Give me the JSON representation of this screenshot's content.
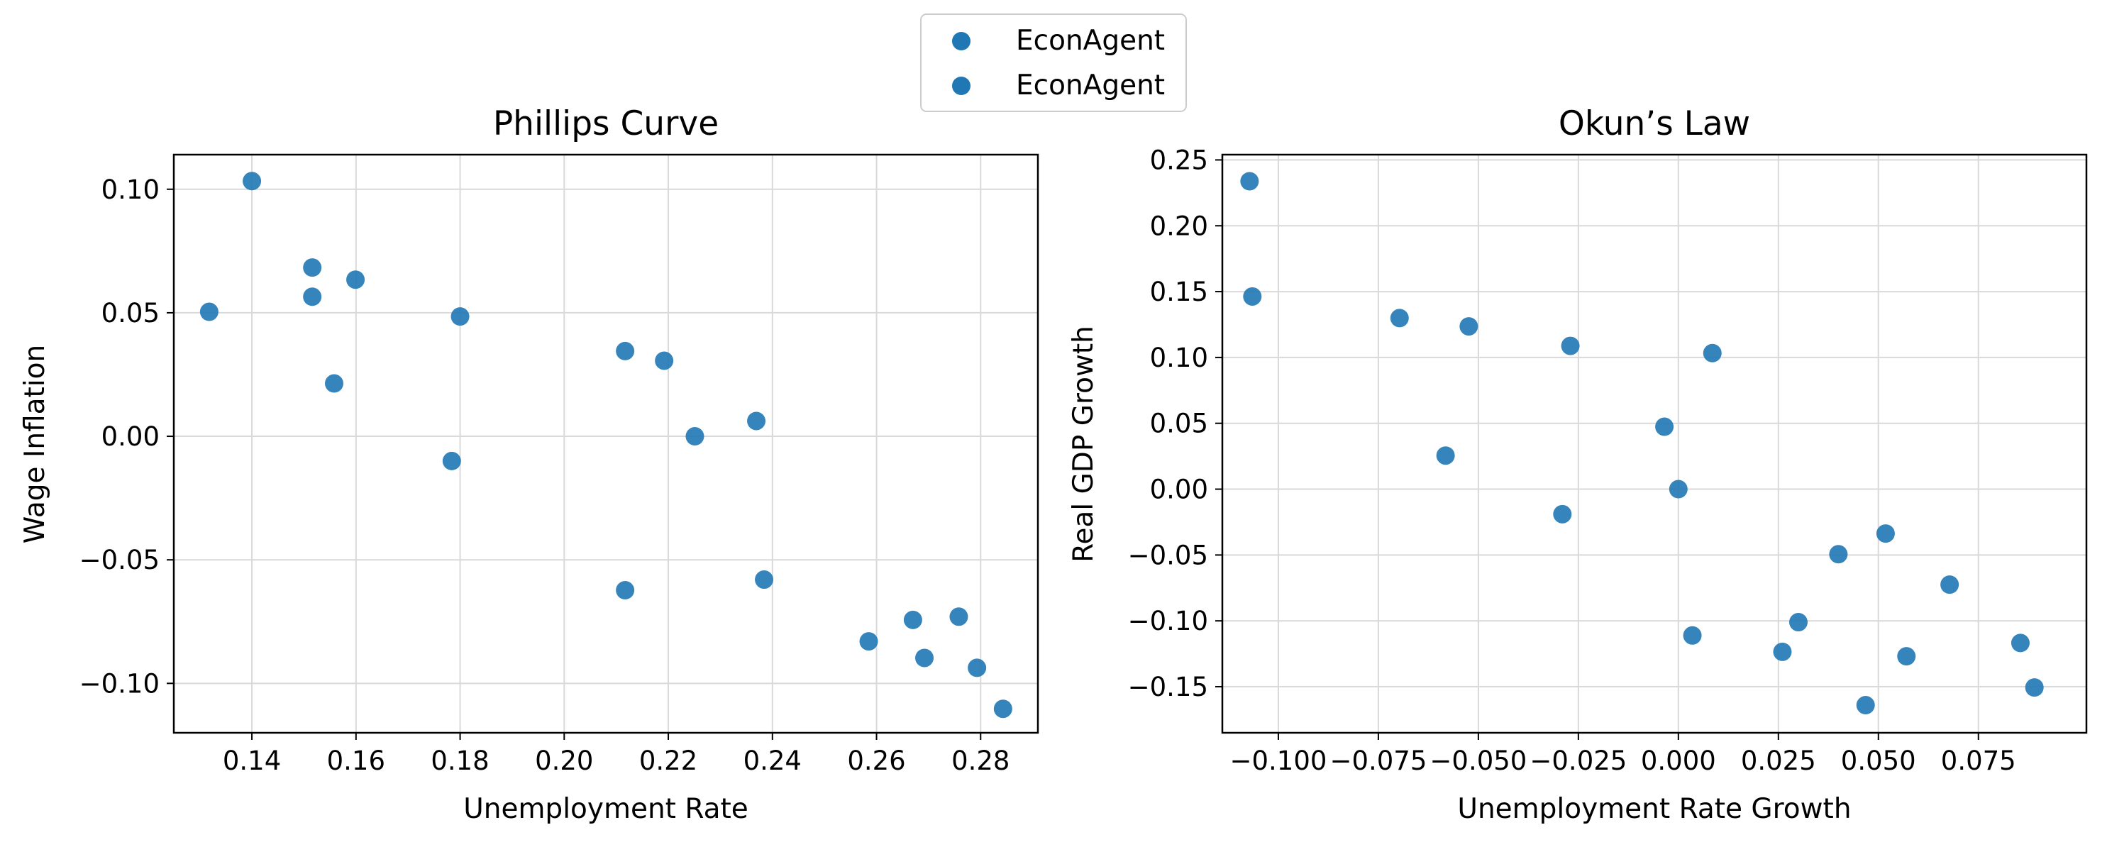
{
  "colors": {
    "marker": "#1f77b4",
    "grid": "#d9d9d9",
    "axes": "#000000"
  },
  "legend": {
    "placement": "top-center",
    "entries": [
      {
        "label": "EconAgent"
      },
      {
        "label": "EconAgent"
      }
    ]
  },
  "chart_data": [
    {
      "type": "scatter",
      "title": "Phillips Curve",
      "xlabel": "Unemployment Rate",
      "ylabel": "Wage Inflation",
      "xlim": [
        0.125,
        0.291
      ],
      "ylim": [
        -0.12,
        0.114
      ],
      "xticks": [
        {
          "value": 0.14,
          "label": "0.14"
        },
        {
          "value": 0.16,
          "label": "0.16"
        },
        {
          "value": 0.18,
          "label": "0.18"
        },
        {
          "value": 0.2,
          "label": "0.20"
        },
        {
          "value": 0.22,
          "label": "0.22"
        },
        {
          "value": 0.24,
          "label": "0.24"
        },
        {
          "value": 0.26,
          "label": "0.26"
        },
        {
          "value": 0.28,
          "label": "0.28"
        }
      ],
      "yticks": [
        {
          "value": 0.1,
          "label": "0.10"
        },
        {
          "value": 0.05,
          "label": "0.05"
        },
        {
          "value": 0.0,
          "label": "0.00"
        },
        {
          "value": -0.05,
          "label": "−0.05"
        },
        {
          "value": -0.1,
          "label": "−0.10"
        }
      ],
      "grid": true,
      "series": [
        {
          "name": "EconAgent",
          "points": [
            {
              "x": 0.1318,
              "y": 0.0504
            },
            {
              "x": 0.14,
              "y": 0.1033
            },
            {
              "x": 0.1516,
              "y": 0.0683
            },
            {
              "x": 0.1516,
              "y": 0.0565
            },
            {
              "x": 0.1558,
              "y": 0.0214
            },
            {
              "x": 0.1599,
              "y": 0.0634
            },
            {
              "x": 0.1784,
              "y": -0.01
            },
            {
              "x": 0.18,
              "y": 0.0485
            },
            {
              "x": 0.2117,
              "y": 0.0345
            },
            {
              "x": 0.2117,
              "y": -0.0623
            },
            {
              "x": 0.2192,
              "y": 0.0306
            },
            {
              "x": 0.2251,
              "y": 0.0
            },
            {
              "x": 0.2369,
              "y": 0.0062
            },
            {
              "x": 0.2384,
              "y": -0.058
            },
            {
              "x": 0.2585,
              "y": -0.083
            },
            {
              "x": 0.267,
              "y": -0.0743
            },
            {
              "x": 0.2692,
              "y": -0.0897
            },
            {
              "x": 0.2758,
              "y": -0.073
            },
            {
              "x": 0.2793,
              "y": -0.0937
            },
            {
              "x": 0.2843,
              "y": -0.1103
            }
          ]
        }
      ]
    },
    {
      "type": "scatter",
      "title": "Okun’s Law",
      "xlabel": "Unemployment Rate Growth",
      "ylabel": "Real GDP Growth",
      "xlim": [
        -0.114,
        0.102
      ],
      "ylim": [
        -0.185,
        0.254
      ],
      "xticks": [
        {
          "value": -0.1,
          "label": "−0.100"
        },
        {
          "value": -0.075,
          "label": "−0.075"
        },
        {
          "value": -0.05,
          "label": "−0.050"
        },
        {
          "value": -0.025,
          "label": "−0.025"
        },
        {
          "value": 0.0,
          "label": "0.000"
        },
        {
          "value": 0.025,
          "label": "0.025"
        },
        {
          "value": 0.05,
          "label": "0.050"
        },
        {
          "value": 0.075,
          "label": "0.075"
        }
      ],
      "yticks": [
        {
          "value": 0.25,
          "label": "0.25"
        },
        {
          "value": 0.2,
          "label": "0.20"
        },
        {
          "value": 0.15,
          "label": "0.15"
        },
        {
          "value": 0.1,
          "label": "0.10"
        },
        {
          "value": 0.05,
          "label": "0.05"
        },
        {
          "value": 0.0,
          "label": "0.00"
        },
        {
          "value": -0.05,
          "label": "−0.05"
        },
        {
          "value": -0.1,
          "label": "−0.10"
        },
        {
          "value": -0.15,
          "label": "−0.15"
        }
      ],
      "grid": true,
      "series": [
        {
          "name": "EconAgent",
          "points": [
            {
              "x": -0.1072,
              "y": 0.2338
            },
            {
              "x": -0.1065,
              "y": 0.1463
            },
            {
              "x": -0.0697,
              "y": 0.1299
            },
            {
              "x": -0.0524,
              "y": 0.1236
            },
            {
              "x": -0.0582,
              "y": 0.0255
            },
            {
              "x": -0.027,
              "y": 0.1088
            },
            {
              "x": -0.029,
              "y": -0.019
            },
            {
              "x": 0.0085,
              "y": 0.1033
            },
            {
              "x": -0.0035,
              "y": 0.0474
            },
            {
              "x": 0.0,
              "y": 0.0
            },
            {
              "x": 0.0035,
              "y": -0.1111
            },
            {
              "x": 0.026,
              "y": -0.1235
            },
            {
              "x": 0.03,
              "y": -0.101
            },
            {
              "x": 0.04,
              "y": -0.0494
            },
            {
              "x": 0.0518,
              "y": -0.0337
            },
            {
              "x": 0.0468,
              "y": -0.164
            },
            {
              "x": 0.057,
              "y": -0.1269
            },
            {
              "x": 0.0678,
              "y": -0.0725
            },
            {
              "x": 0.0855,
              "y": -0.1168
            },
            {
              "x": 0.089,
              "y": -0.1506
            }
          ]
        }
      ]
    }
  ]
}
